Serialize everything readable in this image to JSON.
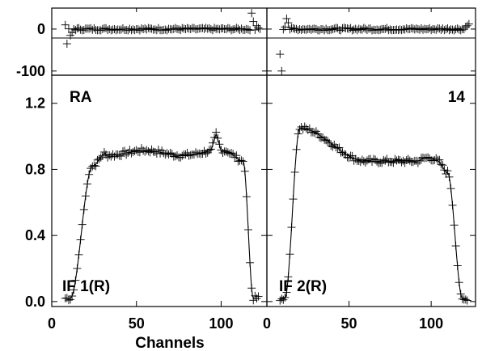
{
  "chart_data": {
    "type": "scatter",
    "xlabel": "Channels",
    "x_ticks": [
      0,
      50,
      100
    ],
    "x_range": [
      0,
      127
    ],
    "amp_ticks": [
      "0.0",
      "0.4",
      "0.8",
      "1.2"
    ],
    "amp_range": [
      -0.03,
      1.37
    ],
    "phase_ticks": [
      "-100",
      "0"
    ],
    "phase_range": [
      -110,
      50
    ],
    "annotations": {
      "left_top": "RA",
      "right_top": "14",
      "left_bottom": "IF 1(R)",
      "right_bottom": "IF 2(R)"
    },
    "panels": [
      {
        "name": "IF 1(R)",
        "amp_shape": {
          "x_start": 8,
          "x_end": 122,
          "rise_start": 11,
          "rise_end": 24,
          "fall_start": 113,
          "fall_end": 119,
          "low": 0.02,
          "level_start": 0.82,
          "plateau": 0.9,
          "level_end": 0.85,
          "spike_x": 97,
          "spike_y": 1.0
        },
        "phase_outliers": [
          [
            8,
            10
          ],
          [
            9,
            -35
          ],
          [
            11,
            -15
          ],
          [
            12,
            -8
          ],
          [
            118,
            38
          ],
          [
            119,
            18
          ],
          [
            120,
            -2
          ],
          [
            121,
            8
          ]
        ]
      },
      {
        "name": "IF 2(R)",
        "amp_shape": {
          "x_start": 8,
          "x_end": 122,
          "rise_start": 11,
          "rise_end": 20,
          "fall_start": 110,
          "fall_end": 119,
          "low": 0.02,
          "peak": 1.05,
          "mid": 0.85,
          "bump_x": 100,
          "bump_y": 0.87,
          "end_level": 0.78
        },
        "phase_outliers": [
          [
            8,
            -60
          ],
          [
            9,
            -100
          ],
          [
            11,
            5
          ],
          [
            12,
            25
          ],
          [
            13,
            15
          ],
          [
            121,
            5
          ],
          [
            122,
            8
          ],
          [
            123,
            12
          ]
        ]
      }
    ]
  }
}
